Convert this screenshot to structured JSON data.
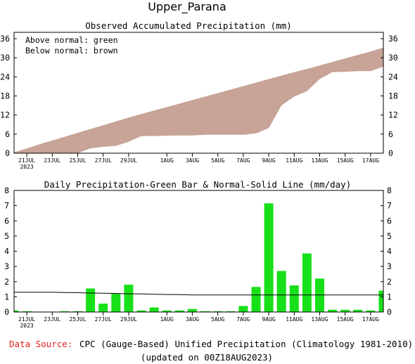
{
  "region": "Upper_Parana",
  "footer": {
    "source_label": "Data Source:",
    "source_text": "CPC (Gauge-Based) Unified Precipitation (Climatology 1981-2010)",
    "updated": "(updated on 00Z18AUG2023)"
  },
  "colors": {
    "normal_fill": "#c7a497",
    "bar": "#18e018",
    "source_label": "#e02020",
    "axis": "#000000"
  },
  "date_ticks": [
    "21JUL",
    "23JUL",
    "25JUL",
    "27JUL",
    "29JUL",
    "1AUG",
    "3AUG",
    "5AUG",
    "7AUG",
    "9AUG",
    "11AUG",
    "13AUG",
    "15AUG",
    "17AUG"
  ],
  "date_year": "2023",
  "chart_data": [
    {
      "type": "area",
      "title": "Observed Accumulated Precipitation (mm)",
      "legend": [
        "Above normal: green",
        "Below normal: brown"
      ],
      "legend_position": "top-left",
      "x": [
        "20JUL",
        "21JUL",
        "22JUL",
        "23JUL",
        "24JUL",
        "25JUL",
        "26JUL",
        "27JUL",
        "28JUL",
        "29JUL",
        "30JUL",
        "31JUL",
        "1AUG",
        "2AUG",
        "3AUG",
        "4AUG",
        "5AUG",
        "6AUG",
        "7AUG",
        "8AUG",
        "9AUG",
        "10AUG",
        "11AUG",
        "12AUG",
        "13AUG",
        "14AUG",
        "15AUG",
        "16AUG",
        "17AUG",
        "18AUG"
      ],
      "series": [
        {
          "name": "Observed",
          "values": [
            0,
            0,
            0,
            0,
            0,
            0,
            1.5,
            2,
            2.3,
            3.6,
            5.4,
            5.4,
            5.5,
            5.6,
            5.6,
            5.8,
            5.8,
            5.8,
            5.8,
            6.2,
            7.9,
            15,
            17.8,
            19.5,
            23.3,
            25.5,
            25.6,
            25.8,
            25.8,
            27.2
          ]
        },
        {
          "name": "Normal",
          "values": [
            0.3,
            1.5,
            2.8,
            4.0,
            5.2,
            6.4,
            7.6,
            8.8,
            10.0,
            11.2,
            12.3,
            13.4,
            14.5,
            15.6,
            16.7,
            17.8,
            18.9,
            20.0,
            21.1,
            22.2,
            23.3,
            24.4,
            25.5,
            26.5,
            27.6,
            28.7,
            29.8,
            30.9,
            32.0,
            33.2
          ]
        }
      ],
      "ylim": [
        0,
        38
      ],
      "yticks": [
        0,
        6,
        12,
        18,
        24,
        30,
        36
      ]
    },
    {
      "type": "bar",
      "title": "Daily Precipitation-Green Bar & Normal-Solid Line (mm/day)",
      "x": [
        "20JUL",
        "21JUL",
        "22JUL",
        "23JUL",
        "24JUL",
        "25JUL",
        "26JUL",
        "27JUL",
        "28JUL",
        "29JUL",
        "30JUL",
        "31JUL",
        "1AUG",
        "2AUG",
        "3AUG",
        "4AUG",
        "5AUG",
        "6AUG",
        "7AUG",
        "8AUG",
        "9AUG",
        "10AUG",
        "11AUG",
        "12AUG",
        "13AUG",
        "14AUG",
        "15AUG",
        "16AUG",
        "17AUG",
        "18AUG"
      ],
      "series": [
        {
          "name": "Daily",
          "values": [
            0.1,
            0.05,
            0,
            0,
            0.05,
            0.05,
            1.55,
            0.55,
            1.2,
            1.8,
            0.1,
            0.3,
            0.1,
            0.1,
            0.2,
            0.05,
            0.05,
            0.05,
            0.4,
            1.65,
            7.15,
            2.7,
            1.75,
            3.85,
            2.2,
            0.15,
            0.15,
            0.15,
            0.1,
            1.4
          ]
        },
        {
          "name": "Normal",
          "values": [
            1.3,
            1.3,
            1.3,
            1.3,
            1.28,
            1.27,
            1.25,
            1.24,
            1.22,
            1.2,
            1.19,
            1.17,
            1.15,
            1.14,
            1.12,
            1.12,
            1.12,
            1.12,
            1.12,
            1.12,
            1.12,
            1.12,
            1.12,
            1.12,
            1.12,
            1.12,
            1.12,
            1.12,
            1.12,
            1.12
          ]
        }
      ],
      "ylim": [
        0,
        8
      ],
      "yticks": [
        0,
        1,
        2,
        3,
        4,
        5,
        6,
        7,
        8
      ]
    }
  ]
}
